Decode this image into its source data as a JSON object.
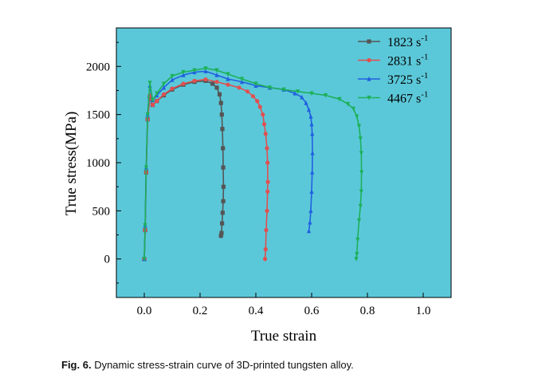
{
  "caption": {
    "label": "Fig. 6.",
    "text": "Dynamic stress-strain curve of 3D-printed tungsten alloy."
  },
  "chart_data": {
    "type": "line",
    "xlabel": "True strain",
    "ylabel": "True stress(MPa)",
    "xlim": [
      -0.1,
      1.1
    ],
    "ylim": [
      -400,
      2400
    ],
    "xticks": [
      0.0,
      0.2,
      0.4,
      0.6,
      0.8,
      1.0
    ],
    "xtick_labels": [
      "0.0",
      "0.2",
      "0.4",
      "0.6",
      "0.8",
      "1.0"
    ],
    "yticks": [
      0,
      500,
      1000,
      1500,
      2000
    ],
    "ytick_labels": [
      "0",
      "500",
      "1000",
      "1500",
      "2000"
    ],
    "background_color": "#5bc8d9",
    "grid": false,
    "legend_position": "top-right",
    "series": [
      {
        "name": "1823 s-1",
        "label_base": "1823 s",
        "label_sup": "-1",
        "color": "#555555",
        "marker": "square",
        "x": [
          0.0,
          0.003,
          0.007,
          0.012,
          0.02,
          0.03,
          0.045,
          0.07,
          0.1,
          0.14,
          0.18,
          0.22,
          0.245,
          0.26,
          0.27,
          0.275,
          0.278,
          0.28,
          0.282,
          0.283,
          0.284,
          0.283,
          0.281,
          0.279,
          0.277,
          0.275
        ],
        "y": [
          0,
          300,
          900,
          1450,
          1680,
          1600,
          1640,
          1700,
          1760,
          1810,
          1840,
          1850,
          1820,
          1780,
          1710,
          1620,
          1500,
          1350,
          1150,
          950,
          750,
          600,
          480,
          370,
          270,
          240
        ]
      },
      {
        "name": "2831 s-1",
        "label_base": "2831 s",
        "label_sup": "-1",
        "color": "#e05050",
        "marker": "circle",
        "x": [
          0.0,
          0.003,
          0.007,
          0.012,
          0.02,
          0.03,
          0.045,
          0.07,
          0.1,
          0.14,
          0.18,
          0.22,
          0.26,
          0.3,
          0.34,
          0.37,
          0.39,
          0.405,
          0.415,
          0.425,
          0.43,
          0.435,
          0.44,
          0.442,
          0.443,
          0.442,
          0.44,
          0.437,
          0.435,
          0.433
        ],
        "y": [
          0,
          300,
          900,
          1450,
          1700,
          1600,
          1640,
          1710,
          1770,
          1820,
          1850,
          1865,
          1840,
          1810,
          1780,
          1740,
          1690,
          1640,
          1580,
          1500,
          1400,
          1300,
          1150,
          1000,
          800,
          700,
          500,
          300,
          100,
          0
        ]
      },
      {
        "name": "3725 s-1",
        "label_base": "3725 s",
        "label_sup": "-1",
        "color": "#2060e0",
        "marker": "triangle-up",
        "x": [
          0.0,
          0.003,
          0.007,
          0.012,
          0.02,
          0.03,
          0.045,
          0.07,
          0.1,
          0.14,
          0.18,
          0.22,
          0.26,
          0.3,
          0.35,
          0.4,
          0.45,
          0.5,
          0.54,
          0.565,
          0.58,
          0.59,
          0.597,
          0.6,
          0.602,
          0.603,
          0.602,
          0.6,
          0.597,
          0.594,
          0.59
        ],
        "y": [
          0,
          350,
          950,
          1500,
          1800,
          1650,
          1700,
          1780,
          1860,
          1910,
          1940,
          1950,
          1910,
          1870,
          1840,
          1800,
          1780,
          1760,
          1720,
          1680,
          1620,
          1550,
          1480,
          1400,
          1300,
          1100,
          900,
          700,
          500,
          380,
          290
        ]
      },
      {
        "name": "4467 s-1",
        "label_base": "4467 s",
        "label_sup": "-1",
        "color": "#1db05a",
        "marker": "triangle-down",
        "x": [
          0.0,
          0.003,
          0.007,
          0.012,
          0.02,
          0.03,
          0.045,
          0.07,
          0.1,
          0.14,
          0.18,
          0.22,
          0.26,
          0.3,
          0.35,
          0.4,
          0.45,
          0.5,
          0.55,
          0.6,
          0.65,
          0.7,
          0.73,
          0.75,
          0.762,
          0.77,
          0.775,
          0.778,
          0.779,
          0.778,
          0.775,
          0.77,
          0.765,
          0.762,
          0.76
        ],
        "y": [
          0,
          350,
          950,
          1500,
          1830,
          1650,
          1720,
          1820,
          1900,
          1940,
          1960,
          1980,
          1960,
          1920,
          1870,
          1820,
          1780,
          1760,
          1740,
          1720,
          1700,
          1660,
          1610,
          1560,
          1480,
          1380,
          1250,
          1100,
          900,
          700,
          550,
          400,
          200,
          50,
          0
        ]
      }
    ]
  }
}
